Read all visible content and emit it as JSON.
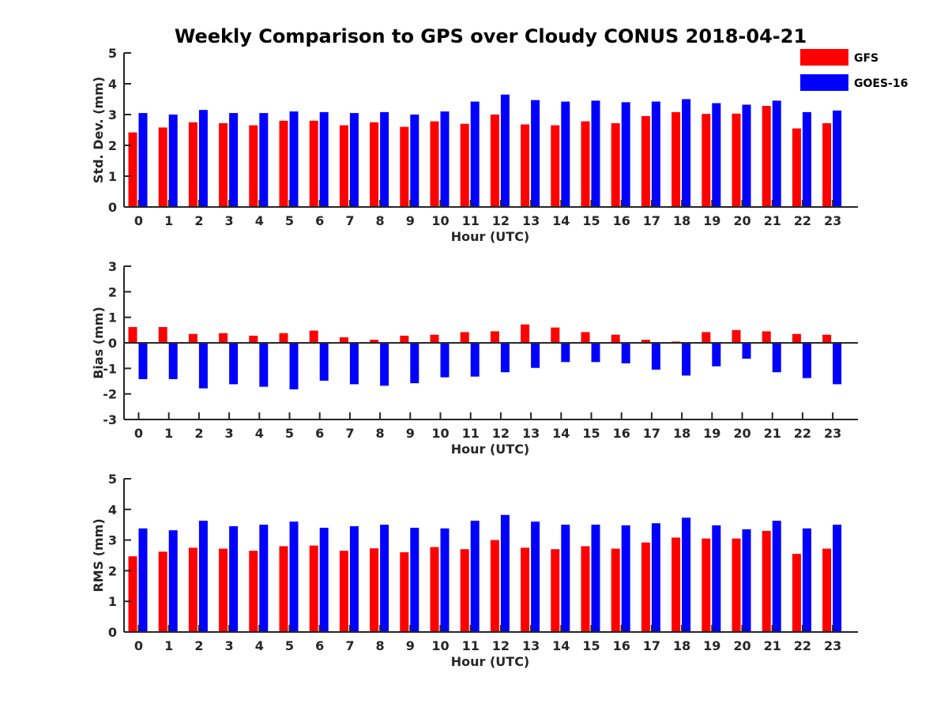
{
  "figure": {
    "title": "Weekly Comparison to GPS over Cloudy CONUS 2018-04-21"
  },
  "legend": {
    "placement": "top-right",
    "items": [
      {
        "label": "GFS",
        "color": "#ff0000"
      },
      {
        "label": "GOES-16",
        "color": "#0000ff"
      }
    ]
  },
  "chart_data": [
    {
      "type": "bar",
      "xlabel": "Hour (UTC)",
      "ylabel": "Std. Dev. (mm)",
      "ylim": [
        0,
        5
      ],
      "yticks": [
        0,
        1,
        2,
        3,
        4,
        5
      ],
      "grid": false,
      "categories": [
        "0",
        "1",
        "2",
        "3",
        "4",
        "5",
        "6",
        "7",
        "8",
        "9",
        "10",
        "11",
        "12",
        "13",
        "14",
        "15",
        "16",
        "17",
        "18",
        "19",
        "20",
        "21",
        "22",
        "23"
      ],
      "series": [
        {
          "name": "GFS",
          "color": "#ff0000",
          "values": [
            2.42,
            2.58,
            2.75,
            2.72,
            2.65,
            2.8,
            2.8,
            2.65,
            2.75,
            2.6,
            2.78,
            2.7,
            3.0,
            2.68,
            2.65,
            2.78,
            2.72,
            2.95,
            3.08,
            3.02,
            3.03,
            3.28,
            2.55,
            2.72
          ]
        },
        {
          "name": "GOES-16",
          "color": "#0000ff",
          "values": [
            3.05,
            3.0,
            3.15,
            3.05,
            3.05,
            3.1,
            3.08,
            3.05,
            3.08,
            3.0,
            3.1,
            3.42,
            3.65,
            3.47,
            3.42,
            3.45,
            3.4,
            3.42,
            3.5,
            3.37,
            3.32,
            3.45,
            3.08,
            3.13
          ]
        }
      ]
    },
    {
      "type": "bar",
      "xlabel": "Hour (UTC)",
      "ylabel": "Bias (mm)",
      "ylim": [
        -3,
        3
      ],
      "yticks": [
        -3,
        -2,
        -1,
        0,
        1,
        2,
        3
      ],
      "grid": false,
      "categories": [
        "0",
        "1",
        "2",
        "3",
        "4",
        "5",
        "6",
        "7",
        "8",
        "9",
        "10",
        "11",
        "12",
        "13",
        "14",
        "15",
        "16",
        "17",
        "18",
        "19",
        "20",
        "21",
        "22",
        "23"
      ],
      "series": [
        {
          "name": "GFS",
          "color": "#ff0000",
          "values": [
            0.62,
            0.62,
            0.35,
            0.38,
            0.28,
            0.38,
            0.48,
            0.22,
            0.12,
            0.28,
            0.32,
            0.42,
            0.45,
            0.72,
            0.6,
            0.42,
            0.32,
            0.12,
            0.05,
            0.42,
            0.5,
            0.45,
            0.35,
            0.32
          ]
        },
        {
          "name": "GOES-16",
          "color": "#0000ff",
          "values": [
            -1.42,
            -1.42,
            -1.78,
            -1.62,
            -1.72,
            -1.82,
            -1.48,
            -1.62,
            -1.68,
            -1.58,
            -1.35,
            -1.32,
            -1.15,
            -0.98,
            -0.75,
            -0.75,
            -0.8,
            -1.05,
            -1.28,
            -0.92,
            -0.62,
            -1.15,
            -1.38,
            -1.62
          ]
        }
      ]
    },
    {
      "type": "bar",
      "xlabel": "Hour (UTC)",
      "ylabel": "RMS (mm)",
      "ylim": [
        0,
        5
      ],
      "yticks": [
        0,
        1,
        2,
        3,
        4,
        5
      ],
      "grid": false,
      "categories": [
        "0",
        "1",
        "2",
        "3",
        "4",
        "5",
        "6",
        "7",
        "8",
        "9",
        "10",
        "11",
        "12",
        "13",
        "14",
        "15",
        "16",
        "17",
        "18",
        "19",
        "20",
        "21",
        "22",
        "23"
      ],
      "series": [
        {
          "name": "GFS",
          "color": "#ff0000",
          "values": [
            2.47,
            2.62,
            2.75,
            2.72,
            2.65,
            2.8,
            2.82,
            2.65,
            2.73,
            2.6,
            2.77,
            2.7,
            3.0,
            2.75,
            2.7,
            2.8,
            2.72,
            2.92,
            3.08,
            3.05,
            3.05,
            3.3,
            2.55,
            2.72
          ]
        },
        {
          "name": "GOES-16",
          "color": "#0000ff",
          "values": [
            3.38,
            3.32,
            3.63,
            3.45,
            3.5,
            3.6,
            3.4,
            3.45,
            3.5,
            3.4,
            3.38,
            3.63,
            3.82,
            3.6,
            3.5,
            3.5,
            3.48,
            3.55,
            3.73,
            3.48,
            3.35,
            3.63,
            3.38,
            3.5
          ]
        }
      ]
    }
  ]
}
